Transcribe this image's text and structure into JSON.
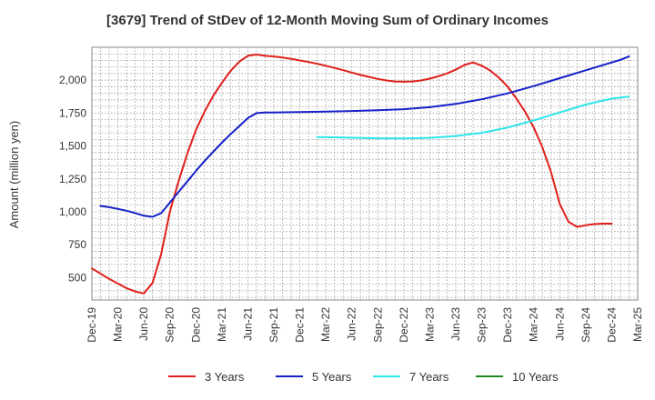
{
  "chart_data": {
    "type": "line",
    "title": "[3679]  Trend of StDev of 12-Month Moving Sum of Ordinary Incomes",
    "ylabel": "Amount (million yen)",
    "xlabel": "",
    "ylim": [
      330,
      2250
    ],
    "yticks": [
      500,
      750,
      1000,
      1250,
      1500,
      1750,
      2000
    ],
    "ytick_labels": [
      "500",
      "750",
      "1,000",
      "1,250",
      "1,500",
      "1,750",
      "2,000"
    ],
    "x_categories": [
      "Dec-19",
      "Mar-20",
      "Jun-20",
      "Sep-20",
      "Dec-20",
      "Mar-21",
      "Jun-21",
      "Sep-21",
      "Dec-21",
      "Mar-22",
      "Jun-22",
      "Sep-22",
      "Dec-22",
      "Mar-23",
      "Jun-23",
      "Sep-23",
      "Dec-23",
      "Mar-24",
      "Jun-24",
      "Sep-24",
      "Dec-24",
      "Mar-25"
    ],
    "grid": true,
    "legend_position": "bottom",
    "series": [
      {
        "name": "3 Years",
        "color": "#e0201b",
        "points": [
          [
            "Dec-19",
            570
          ],
          [
            "Jan-20",
            530
          ],
          [
            "Feb-20",
            490
          ],
          [
            "Mar-20",
            455
          ],
          [
            "Apr-20",
            420
          ],
          [
            "May-20",
            395
          ],
          [
            "Jun-20",
            380
          ],
          [
            "Jul-20",
            460
          ],
          [
            "Aug-20",
            680
          ],
          [
            "Sep-20",
            1000
          ],
          [
            "Oct-20",
            1230
          ],
          [
            "Nov-20",
            1440
          ],
          [
            "Dec-20",
            1620
          ],
          [
            "Jan-21",
            1760
          ],
          [
            "Feb-21",
            1880
          ],
          [
            "Mar-21",
            1980
          ],
          [
            "Apr-21",
            2070
          ],
          [
            "May-21",
            2140
          ],
          [
            "Jun-21",
            2185
          ],
          [
            "Jul-21",
            2195
          ],
          [
            "Aug-21",
            2185
          ],
          [
            "Sep-21",
            2180
          ],
          [
            "Oct-21",
            2172
          ],
          [
            "Nov-21",
            2162
          ],
          [
            "Dec-21",
            2150
          ],
          [
            "Jan-22",
            2138
          ],
          [
            "Feb-22",
            2125
          ],
          [
            "Mar-22",
            2110
          ],
          [
            "Apr-22",
            2093
          ],
          [
            "May-22",
            2076
          ],
          [
            "Jun-22",
            2058
          ],
          [
            "Jul-22",
            2040
          ],
          [
            "Aug-22",
            2025
          ],
          [
            "Sep-22",
            2010
          ],
          [
            "Oct-22",
            1998
          ],
          [
            "Nov-22",
            1990
          ],
          [
            "Dec-22",
            1988
          ],
          [
            "Jan-23",
            1990
          ],
          [
            "Feb-23",
            1998
          ],
          [
            "Mar-23",
            2012
          ],
          [
            "Apr-23",
            2030
          ],
          [
            "May-23",
            2052
          ],
          [
            "Jun-23",
            2080
          ],
          [
            "Jul-23",
            2115
          ],
          [
            "Aug-23",
            2135
          ],
          [
            "Sep-23",
            2110
          ],
          [
            "Oct-23",
            2072
          ],
          [
            "Nov-23",
            2018
          ],
          [
            "Dec-23",
            1950
          ],
          [
            "Jan-24",
            1860
          ],
          [
            "Feb-24",
            1760
          ],
          [
            "Mar-24",
            1640
          ],
          [
            "Apr-24",
            1490
          ],
          [
            "May-24",
            1300
          ],
          [
            "Jun-24",
            1060
          ],
          [
            "Jul-24",
            925
          ],
          [
            "Aug-24",
            885
          ],
          [
            "Sep-24",
            898
          ],
          [
            "Oct-24",
            907
          ],
          [
            "Nov-24",
            910
          ],
          [
            "Dec-24",
            910
          ]
        ]
      },
      {
        "name": "5 Years",
        "color": "#1520c8",
        "points": [
          [
            "Jan-20",
            1045
          ],
          [
            "Feb-20",
            1035
          ],
          [
            "Mar-20",
            1022
          ],
          [
            "Apr-20",
            1008
          ],
          [
            "May-20",
            990
          ],
          [
            "Jun-20",
            970
          ],
          [
            "Jul-20",
            962
          ],
          [
            "Aug-20",
            990
          ],
          [
            "Sep-20",
            1070
          ],
          [
            "Oct-20",
            1150
          ],
          [
            "Nov-20",
            1230
          ],
          [
            "Dec-20",
            1310
          ],
          [
            "Jan-21",
            1385
          ],
          [
            "Feb-21",
            1455
          ],
          [
            "Mar-21",
            1525
          ],
          [
            "Apr-21",
            1590
          ],
          [
            "May-21",
            1650
          ],
          [
            "Jun-21",
            1712
          ],
          [
            "Jul-21",
            1750
          ],
          [
            "Aug-21",
            1755
          ],
          [
            "Sep-21",
            1755
          ],
          [
            "Dec-21",
            1758
          ],
          [
            "Mar-22",
            1762
          ],
          [
            "Jun-22",
            1766
          ],
          [
            "Sep-22",
            1772
          ],
          [
            "Dec-22",
            1780
          ],
          [
            "Mar-23",
            1795
          ],
          [
            "Jun-23",
            1820
          ],
          [
            "Sep-23",
            1855
          ],
          [
            "Dec-23",
            1900
          ],
          [
            "Mar-24",
            1955
          ],
          [
            "Jun-24",
            2015
          ],
          [
            "Sep-24",
            2075
          ],
          [
            "Dec-24",
            2135
          ],
          [
            "Jan-25",
            2155
          ],
          [
            "Feb-25",
            2180
          ]
        ]
      },
      {
        "name": "7 Years",
        "color": "#2ee6ea",
        "points": [
          [
            "Feb-22",
            1568
          ],
          [
            "Mar-22",
            1567
          ],
          [
            "Jun-22",
            1563
          ],
          [
            "Sep-22",
            1559
          ],
          [
            "Dec-22",
            1557
          ],
          [
            "Mar-23",
            1562
          ],
          [
            "Jun-23",
            1576
          ],
          [
            "Sep-23",
            1600
          ],
          [
            "Dec-23",
            1640
          ],
          [
            "Mar-24",
            1695
          ],
          [
            "Jun-24",
            1755
          ],
          [
            "Sep-24",
            1815
          ],
          [
            "Dec-24",
            1860
          ],
          [
            "Feb-25",
            1875
          ]
        ]
      },
      {
        "name": "10 Years",
        "color": "#1e8c1e",
        "points": []
      }
    ]
  }
}
